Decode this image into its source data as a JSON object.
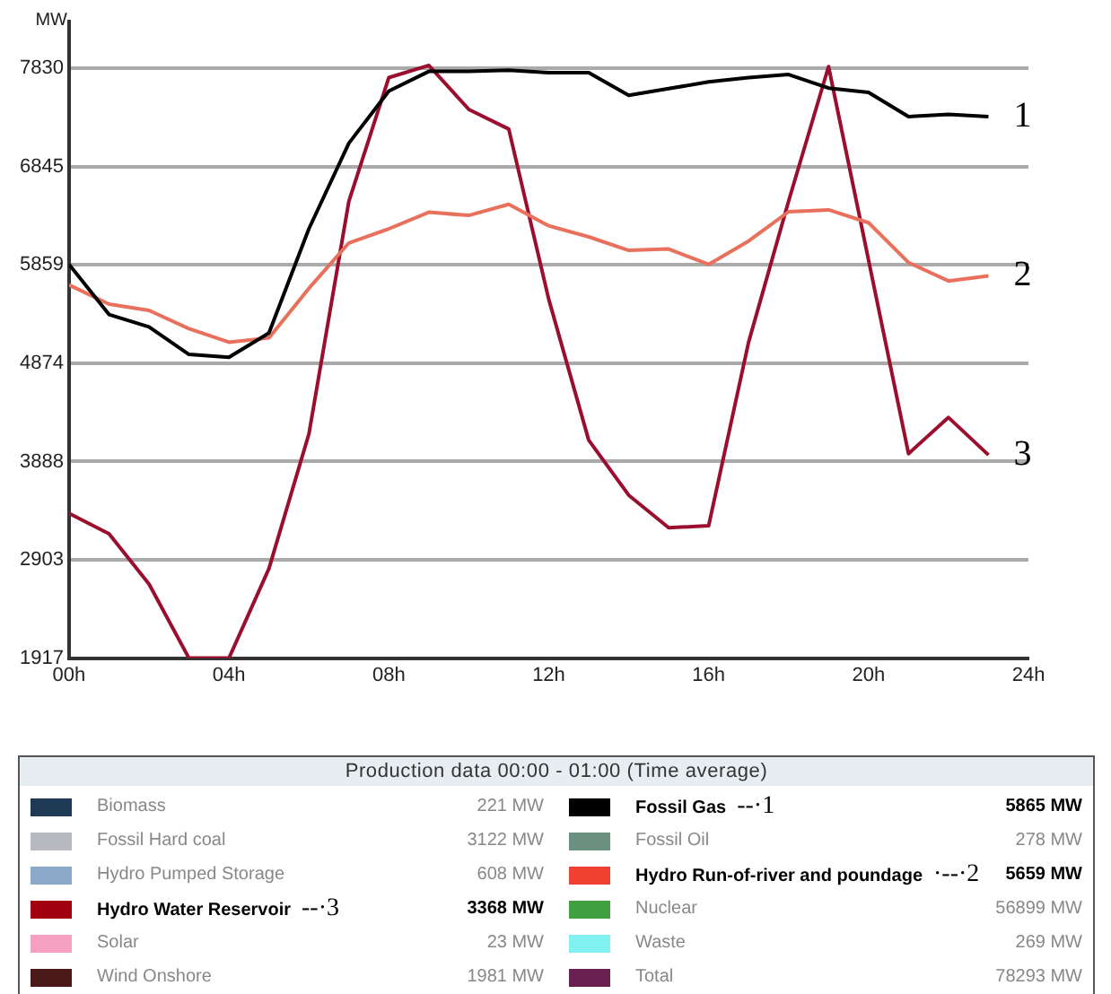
{
  "chart_data": [
    {
      "type": "line",
      "ylabel": "MW",
      "x": [
        0,
        1,
        2,
        3,
        4,
        5,
        6,
        7,
        8,
        9,
        10,
        11,
        12,
        13,
        14,
        15,
        16,
        17,
        18,
        19,
        20,
        21,
        22,
        23
      ],
      "series": [
        {
          "color": "#000000",
          "values": [
            5865,
            5362,
            5238,
            4962,
            4933,
            5177,
            6222,
            7080,
            7603,
            7800,
            7800,
            7812,
            7787,
            7787,
            7560,
            7627,
            7695,
            7738,
            7769,
            7633,
            7590,
            7346,
            7370,
            7346
          ]
        },
        {
          "color": "#e8705c",
          "values": [
            5659,
            5467,
            5404,
            5220,
            5085,
            5128,
            5625,
            6080,
            6222,
            6388,
            6356,
            6467,
            6252,
            6141,
            6006,
            6019,
            5865,
            6099,
            6393,
            6412,
            6283,
            5883,
            5699,
            5749
          ]
        },
        {
          "color": "#9a0f2e",
          "values": [
            3368,
            3164,
            2660,
            1917,
            1917,
            2814,
            4164,
            6498,
            7738,
            7860,
            7419,
            7222,
            5515,
            4103,
            3551,
            3225,
            3244,
            5085,
            6498,
            7848,
            5909,
            3967,
            4330,
            3954
          ]
        }
      ],
      "xlim": [
        0,
        24
      ],
      "xticks": [
        {
          "value": 0,
          "label": "00h"
        },
        {
          "value": 4,
          "label": "04h"
        },
        {
          "value": 8,
          "label": "08h"
        },
        {
          "value": 12,
          "label": "12h"
        },
        {
          "value": 16,
          "label": "16h"
        },
        {
          "value": 20,
          "label": "20h"
        },
        {
          "value": 24,
          "label": "24h"
        }
      ],
      "ylim": [
        1917,
        8300
      ],
      "yticks": [
        1917,
        2903,
        3888,
        4874,
        5859,
        6845,
        7830
      ],
      "grid": "y",
      "legend": false,
      "annotations": [
        {
          "text": "1",
          "x": 23,
          "y": 7346
        },
        {
          "text": "2",
          "x": 23,
          "y": 5749
        },
        {
          "text": "3",
          "x": 23,
          "y": 3954
        }
      ]
    },
    {
      "type": "other",
      "title": "Production data 00:00 - 01:00 (Time average)",
      "categories": [
        "Biomass",
        "Fossil Hard coal",
        "Hydro Pumped Storage",
        "Hydro Water Reservoir",
        "Solar",
        "Wind Onshore",
        "Fossil Gas",
        "Fossil Oil",
        "Hydro Run-of-river and poundage",
        "Nuclear",
        "Waste",
        "Total"
      ],
      "colors": [
        "#1f3a55",
        "#b8b8c0",
        "#8aa8c8",
        "#a00010",
        "#f4a0c0",
        "#4a1a1a",
        "#000000",
        "#6a9080",
        "#f04030",
        "#40a040",
        "#80f0f0",
        "#6a2050"
      ],
      "value_labels": [
        "221 MW",
        "3122 MW",
        "608 MW",
        "3368 MW",
        "23 MW",
        "1981 MW",
        "5865 MW",
        "278 MW",
        "5659 MW",
        "56899 MW",
        "269 MW",
        "78293 MW"
      ],
      "annotations": [
        {
          "text": "--·3",
          "x": "Hydro Water Reservoir"
        },
        {
          "text": "--·1",
          "x": "Fossil Gas"
        },
        {
          "text": "·--·2",
          "x": "Hydro Run-of-river and poundage"
        }
      ]
    }
  ]
}
